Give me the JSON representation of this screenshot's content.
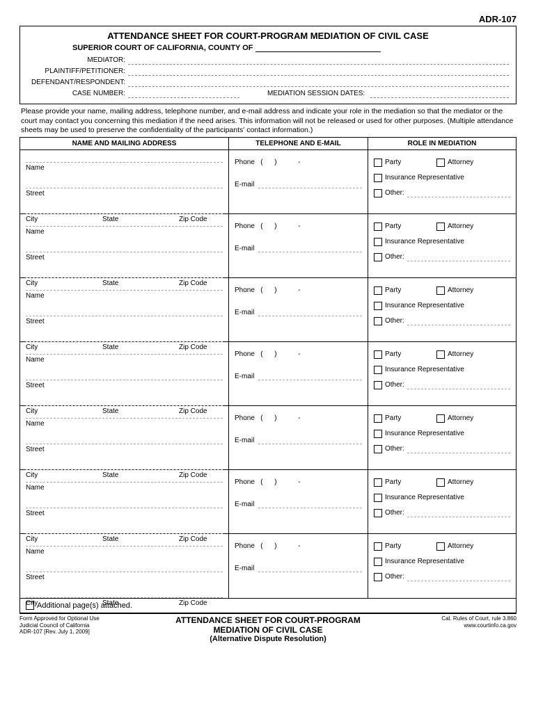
{
  "form_number": "ADR-107",
  "header": {
    "title": "ATTENDANCE SHEET FOR COURT-PROGRAM MEDIATION OF CIVIL CASE",
    "court_prefix": "SUPERIOR COURT OF CALIFORNIA, COUNTY OF",
    "mediator_label": "MEDIATOR:",
    "plaintiff_label": "PLAINTIFF/PETITIONER:",
    "defendant_label": "DEFENDANT/RESPONDENT:",
    "case_label": "CASE NUMBER:",
    "session_label": "MEDIATION SESSION DATES:"
  },
  "instructions": "Please provide your name, mailing address, telephone number, and e-mail address and indicate your role in the mediation so that the mediator or the court may contact you concerning this mediation if the need arises. This information will not be released or used for other purposes. (Multiple attendance sheets may be used to preserve the confidentiality of the participants' contact information.)",
  "columns": {
    "col1": "NAME AND MAILING ADDRESS",
    "col2": "TELEPHONE AND E-MAIL",
    "col3": "ROLE IN MEDIATION"
  },
  "row_labels": {
    "name": "Name",
    "street": "Street",
    "city": "City",
    "state": "State",
    "zip": "Zip Code",
    "phone": "Phone",
    "phone_paren_open": "(",
    "phone_paren_close": ")",
    "phone_dash": "-",
    "email": "E-mail",
    "party": "Party",
    "attorney": "Attorney",
    "insurance": "Insurance Representative",
    "other": "Other:"
  },
  "additional_label": "Additional page(s) attached.",
  "footer": {
    "left_line1": "Form Approved for Optional Use",
    "left_line2": "Judicial Council of California",
    "left_line3": "ADR-107 [Rev. July 1, 2009]",
    "center_line1": "ATTENDANCE SHEET FOR COURT-PROGRAM",
    "center_line2": "MEDIATION OF CIVIL CASE",
    "center_line3": "(Alternative Dispute Resolution)",
    "right_line1": "Cal. Rules of Court, rule 3.860",
    "right_line2": "www.courtinfo.ca.gov"
  },
  "row_count": 7
}
